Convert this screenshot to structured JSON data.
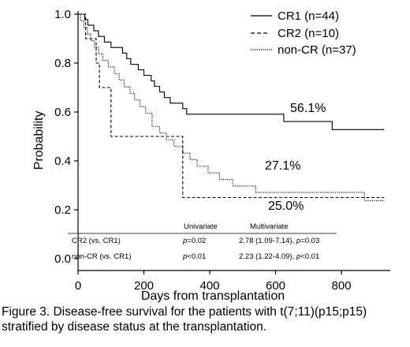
{
  "chart_data": {
    "type": "line",
    "step": true,
    "xlabel": "Days from transplantation",
    "ylabel": "Probability",
    "xlim": [
      0,
      930
    ],
    "ylim": [
      0,
      1.0
    ],
    "x_ticks": [
      0,
      200,
      400,
      600,
      800
    ],
    "y_ticks": [
      0.0,
      0.2,
      0.4,
      0.6,
      0.8,
      1.0
    ],
    "y_tick_labels": [
      "0.0",
      "0.2",
      "0.4",
      "0.6",
      "0.8",
      "1.0"
    ],
    "legend_position": "top-right",
    "series": [
      {
        "name": "CR1 (n=44)",
        "style": "solid",
        "x": [
          0,
          20,
          30,
          48,
          62,
          80,
          100,
          135,
          148,
          160,
          183,
          200,
          222,
          232,
          248,
          262,
          280,
          318,
          330,
          368,
          398,
          575,
          625,
          695,
          772,
          930
        ],
        "y": [
          1.0,
          0.977,
          0.955,
          0.932,
          0.909,
          0.886,
          0.864,
          0.841,
          0.818,
          0.795,
          0.773,
          0.75,
          0.727,
          0.705,
          0.682,
          0.659,
          0.636,
          0.614,
          0.591,
          0.591,
          0.591,
          0.591,
          0.561,
          0.561,
          0.528,
          0.528
        ]
      },
      {
        "name": "CR2 (n=10)",
        "style": "dashed",
        "x": [
          0,
          23,
          55,
          65,
          100,
          318,
          870,
          930
        ],
        "y": [
          1.0,
          0.9,
          0.8,
          0.7,
          0.5,
          0.25,
          0.25,
          0.25
        ],
        "annotation": "25.0%"
      },
      {
        "name": "non-CR (n=37)",
        "style": "dotted",
        "x": [
          0,
          8,
          18,
          28,
          38,
          50,
          62,
          75,
          92,
          110,
          125,
          140,
          158,
          172,
          188,
          205,
          225,
          248,
          268,
          292,
          318,
          340,
          362,
          395,
          430,
          470,
          540,
          600,
          640,
          682,
          705,
          870,
          930
        ],
        "y": [
          1.0,
          0.973,
          0.946,
          0.919,
          0.892,
          0.865,
          0.838,
          0.811,
          0.784,
          0.757,
          0.73,
          0.703,
          0.676,
          0.649,
          0.622,
          0.595,
          0.541,
          0.514,
          0.486,
          0.459,
          0.432,
          0.405,
          0.378,
          0.351,
          0.324,
          0.297,
          0.271,
          0.271,
          0.271,
          0.271,
          0.271,
          0.237,
          0.237
        ],
        "annotation": "27.1%"
      }
    ],
    "annotations": [
      {
        "text": "56.1%",
        "series": "CR1 (n=44)"
      },
      {
        "text": "27.1%",
        "series": "non-CR (n=37)"
      },
      {
        "text": "25.0%",
        "series": "CR2 (n=10)"
      }
    ],
    "table": {
      "headers": [
        "",
        "Univariate",
        "Multivariate"
      ],
      "rows": [
        {
          "label": "CR2 (vs. CR1)",
          "p_prefix": "p",
          "univariate": "=0.02",
          "multivariate_ci": "2.78 (1.09-7.14), ",
          "multivariate_p": "=0.03"
        },
        {
          "label": "non-CR (vs. CR1)",
          "p_prefix": "p",
          "univariate": "<0.01",
          "multivariate_ci": "2.23 (1.22-4.09), ",
          "multivariate_p": "<0.01"
        }
      ]
    }
  },
  "caption": {
    "line1": "Figure 3.  Disease-free survival for the patients with t(7;11)(p15;p15)",
    "line2": "stratified by disease status at the transplantation."
  }
}
